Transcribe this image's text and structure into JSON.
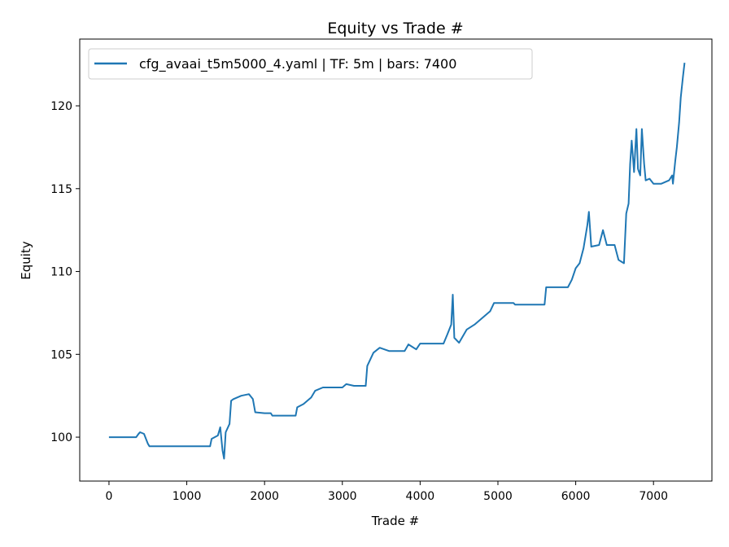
{
  "chart_data": {
    "type": "line",
    "title": "Equity vs Trade #",
    "xlabel": "Trade #",
    "ylabel": "Equity",
    "xlim": [
      -376,
      7751
    ],
    "ylim": [
      97.35,
      124.03
    ],
    "xticks": [
      0,
      1000,
      2000,
      3000,
      4000,
      5000,
      6000,
      7000
    ],
    "yticks": [
      100,
      105,
      110,
      115,
      120
    ],
    "grid": false,
    "legend_position": "top-left",
    "series": [
      {
        "name": "cfg_avaai_t5m5000_4.yaml | TF: 5m | bars: 7400",
        "color": "#1f77b4",
        "x": [
          0,
          350,
          380,
          400,
          450,
          500,
          520,
          1000,
          1300,
          1320,
          1400,
          1430,
          1460,
          1480,
          1500,
          1550,
          1570,
          1600,
          1700,
          1800,
          1850,
          1880,
          2000,
          2080,
          2100,
          2400,
          2420,
          2500,
          2600,
          2650,
          2750,
          3000,
          3050,
          3150,
          3300,
          3320,
          3400,
          3480,
          3600,
          3800,
          3850,
          3950,
          4000,
          4300,
          4350,
          4400,
          4420,
          4440,
          4500,
          4600,
          4700,
          4800,
          4900,
          4950,
          5200,
          5220,
          5600,
          5620,
          5900,
          5950,
          6000,
          6050,
          6100,
          6150,
          6170,
          6200,
          6300,
          6350,
          6400,
          6500,
          6550,
          6620,
          6650,
          6680,
          6700,
          6720,
          6750,
          6780,
          6800,
          6830,
          6850,
          6880,
          6900,
          6950,
          7000,
          7100,
          7200,
          7240,
          7250,
          7280,
          7300,
          7330,
          7350,
          7380,
          7400
        ],
        "y": [
          100,
          100,
          100.2,
          100.3,
          100.2,
          99.6,
          99.45,
          99.45,
          99.45,
          99.9,
          100.1,
          100.6,
          99.2,
          98.7,
          100.3,
          100.8,
          102.2,
          102.3,
          102.5,
          102.6,
          102.3,
          101.5,
          101.45,
          101.45,
          101.3,
          101.3,
          101.8,
          102.0,
          102.4,
          102.8,
          103.0,
          103.0,
          103.2,
          103.1,
          103.1,
          104.3,
          105.1,
          105.4,
          105.2,
          105.2,
          105.6,
          105.3,
          105.65,
          105.65,
          106.2,
          106.8,
          108.6,
          106.0,
          105.7,
          106.5,
          106.8,
          107.2,
          107.6,
          108.1,
          108.1,
          108.0,
          108.0,
          109.05,
          109.05,
          109.5,
          110.2,
          110.5,
          111.4,
          112.8,
          113.6,
          111.5,
          111.6,
          112.5,
          111.6,
          111.6,
          110.7,
          110.5,
          113.5,
          114.1,
          116.5,
          117.9,
          116.0,
          118.6,
          116.2,
          115.8,
          118.6,
          116.5,
          115.5,
          115.6,
          115.3,
          115.3,
          115.5,
          115.8,
          115.3,
          116.7,
          117.5,
          119.0,
          120.5,
          121.8,
          122.6
        ]
      }
    ]
  }
}
